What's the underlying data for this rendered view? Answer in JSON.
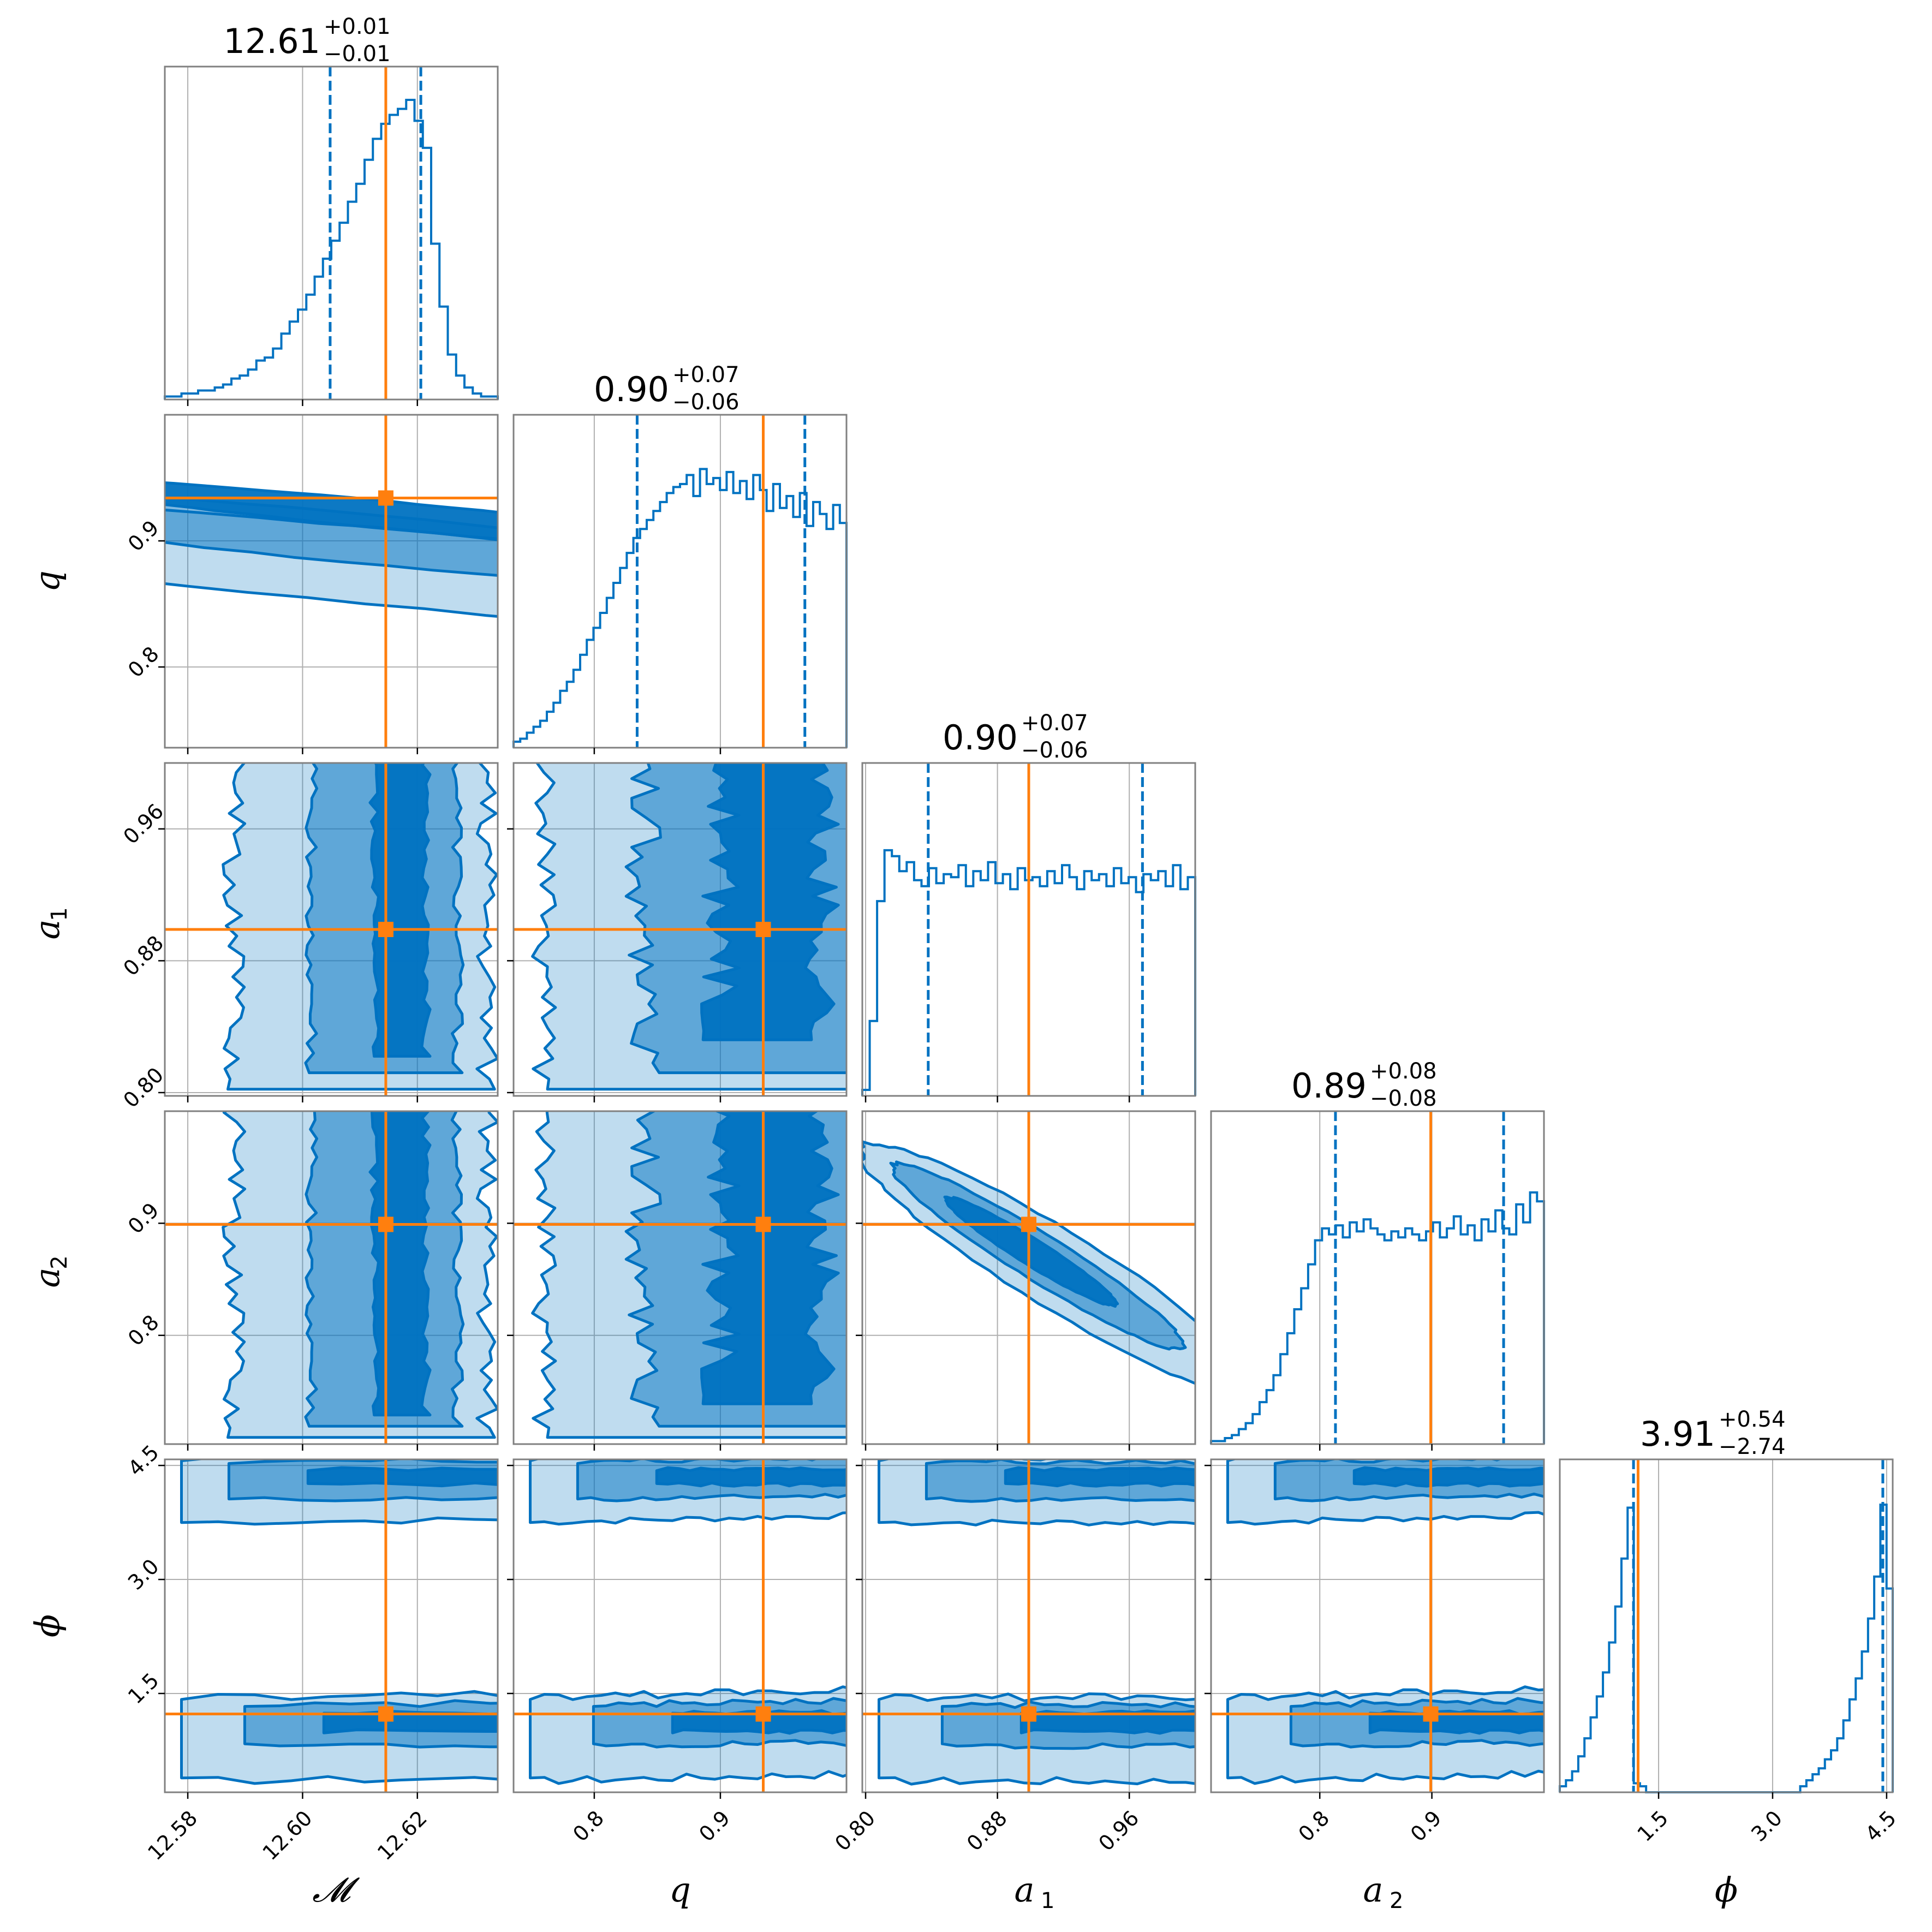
{
  "chart_data": {
    "type": "corner",
    "params": [
      {
        "key": "M",
        "label": "𝓜",
        "range": [
          12.576,
          12.634
        ],
        "ticks": [
          12.58,
          12.6,
          12.62
        ],
        "tick_labels": [
          "12.58",
          "12.60",
          "12.62"
        ],
        "truth": 12.6145,
        "title": {
          "median": "12.61",
          "plus": "+0.01",
          "minus": "−0.01"
        },
        "q16": 12.6048,
        "q84": 12.6206
      },
      {
        "key": "q",
        "label": "q",
        "range": [
          0.736,
          1.0
        ],
        "ticks": [
          0.8,
          0.9
        ],
        "tick_labels": [
          "0.8",
          "0.9"
        ],
        "truth": 0.934,
        "title": {
          "median": "0.90",
          "plus": "+0.07",
          "minus": "−0.06"
        },
        "q16": 0.834,
        "q84": 0.967
      },
      {
        "key": "a1",
        "label": "a",
        "sub": "1",
        "range": [
          0.798,
          1.0
        ],
        "ticks": [
          0.8,
          0.88,
          0.96
        ],
        "tick_labels": [
          "0.80",
          "0.88",
          "0.96"
        ],
        "truth": 0.899,
        "title": {
          "median": "0.90",
          "plus": "+0.07",
          "minus": "−0.06"
        },
        "q16": 0.838,
        "q84": 0.968
      },
      {
        "key": "a2",
        "label": "a",
        "sub": "2",
        "range": [
          0.703,
          1.0
        ],
        "ticks": [
          0.8,
          0.9
        ],
        "tick_labels": [
          "0.8",
          "0.9"
        ],
        "truth": 0.899,
        "title": {
          "median": "0.89",
          "plus": "+0.08",
          "minus": "−0.08"
        },
        "q16": 0.814,
        "q84": 0.964
      },
      {
        "key": "phi",
        "label": "ϕ",
        "range": [
          0.2,
          4.58
        ],
        "ticks": [
          1.5,
          3.0,
          4.5
        ],
        "tick_labels": [
          "1.5",
          "3.0",
          "4.5"
        ],
        "truth": 1.23,
        "title": {
          "median": "3.91",
          "plus": "+0.54",
          "minus": "−2.74"
        },
        "q16": 1.17,
        "q84": 4.45
      }
    ],
    "hist": {
      "M": [
        0.01,
        0.01,
        0.02,
        0.02,
        0.03,
        0.03,
        0.04,
        0.05,
        0.07,
        0.08,
        0.1,
        0.13,
        0.14,
        0.17,
        0.22,
        0.26,
        0.3,
        0.35,
        0.41,
        0.47,
        0.53,
        0.59,
        0.66,
        0.72,
        0.8,
        0.87,
        0.92,
        0.95,
        0.97,
        1.0,
        0.93,
        0.84,
        0.52,
        0.31,
        0.15,
        0.08,
        0.04,
        0.02,
        0.01,
        0.01
      ],
      "q": [
        0.02,
        0.03,
        0.05,
        0.07,
        0.09,
        0.12,
        0.15,
        0.19,
        0.22,
        0.26,
        0.31,
        0.36,
        0.4,
        0.45,
        0.5,
        0.55,
        0.6,
        0.65,
        0.7,
        0.73,
        0.76,
        0.79,
        0.82,
        0.85,
        0.87,
        0.88,
        0.91,
        0.84,
        0.93,
        0.88,
        0.9,
        0.86,
        0.92,
        0.85,
        0.89,
        0.83,
        0.91,
        0.86,
        0.79,
        0.88,
        0.8,
        0.84,
        0.77,
        0.85,
        0.74,
        0.82,
        0.78,
        0.73,
        0.81,
        0.75
      ],
      "a1": [
        0.02,
        0.25,
        0.65,
        0.82,
        0.8,
        0.75,
        0.78,
        0.72,
        0.7,
        0.76,
        0.71,
        0.74,
        0.73,
        0.77,
        0.7,
        0.75,
        0.72,
        0.78,
        0.71,
        0.74,
        0.69,
        0.76,
        0.72,
        0.73,
        0.7,
        0.75,
        0.71,
        0.77,
        0.73,
        0.69,
        0.75,
        0.72,
        0.74,
        0.7,
        0.76,
        0.71,
        0.73,
        0.68,
        0.74,
        0.72,
        0.75,
        0.7,
        0.77,
        0.69,
        0.73
      ],
      "a2": [
        0.01,
        0.01,
        0.02,
        0.03,
        0.05,
        0.07,
        0.1,
        0.14,
        0.18,
        0.23,
        0.3,
        0.37,
        0.45,
        0.52,
        0.6,
        0.68,
        0.72,
        0.7,
        0.73,
        0.69,
        0.74,
        0.71,
        0.75,
        0.72,
        0.7,
        0.68,
        0.71,
        0.69,
        0.72,
        0.7,
        0.68,
        0.71,
        0.74,
        0.69,
        0.72,
        0.76,
        0.7,
        0.73,
        0.68,
        0.75,
        0.71,
        0.78,
        0.72,
        0.7,
        0.8,
        0.74,
        0.84,
        0.81
      ],
      "phi": [
        0.02,
        0.04,
        0.07,
        0.12,
        0.18,
        0.25,
        0.32,
        0.4,
        0.5,
        0.62,
        0.78,
        0.95,
        0.03,
        0.02,
        0.0,
        0.0,
        0.0,
        0.0,
        0.0,
        0.0,
        0.0,
        0.0,
        0.0,
        0.0,
        0.0,
        0.0,
        0.0,
        0.0,
        0.0,
        0.0,
        0.0,
        0.0,
        0.0,
        0.0,
        0.0,
        0.0,
        0.0,
        0.0,
        0.0,
        0.02,
        0.04,
        0.06,
        0.08,
        0.11,
        0.14,
        0.18,
        0.24,
        0.31,
        0.38,
        0.47,
        0.58,
        0.72,
        0.96,
        0.68
      ]
    },
    "truth_color": "#ff7f0e",
    "contour_color": "#0072c1",
    "quantile_style": "dashed",
    "grid": true
  }
}
